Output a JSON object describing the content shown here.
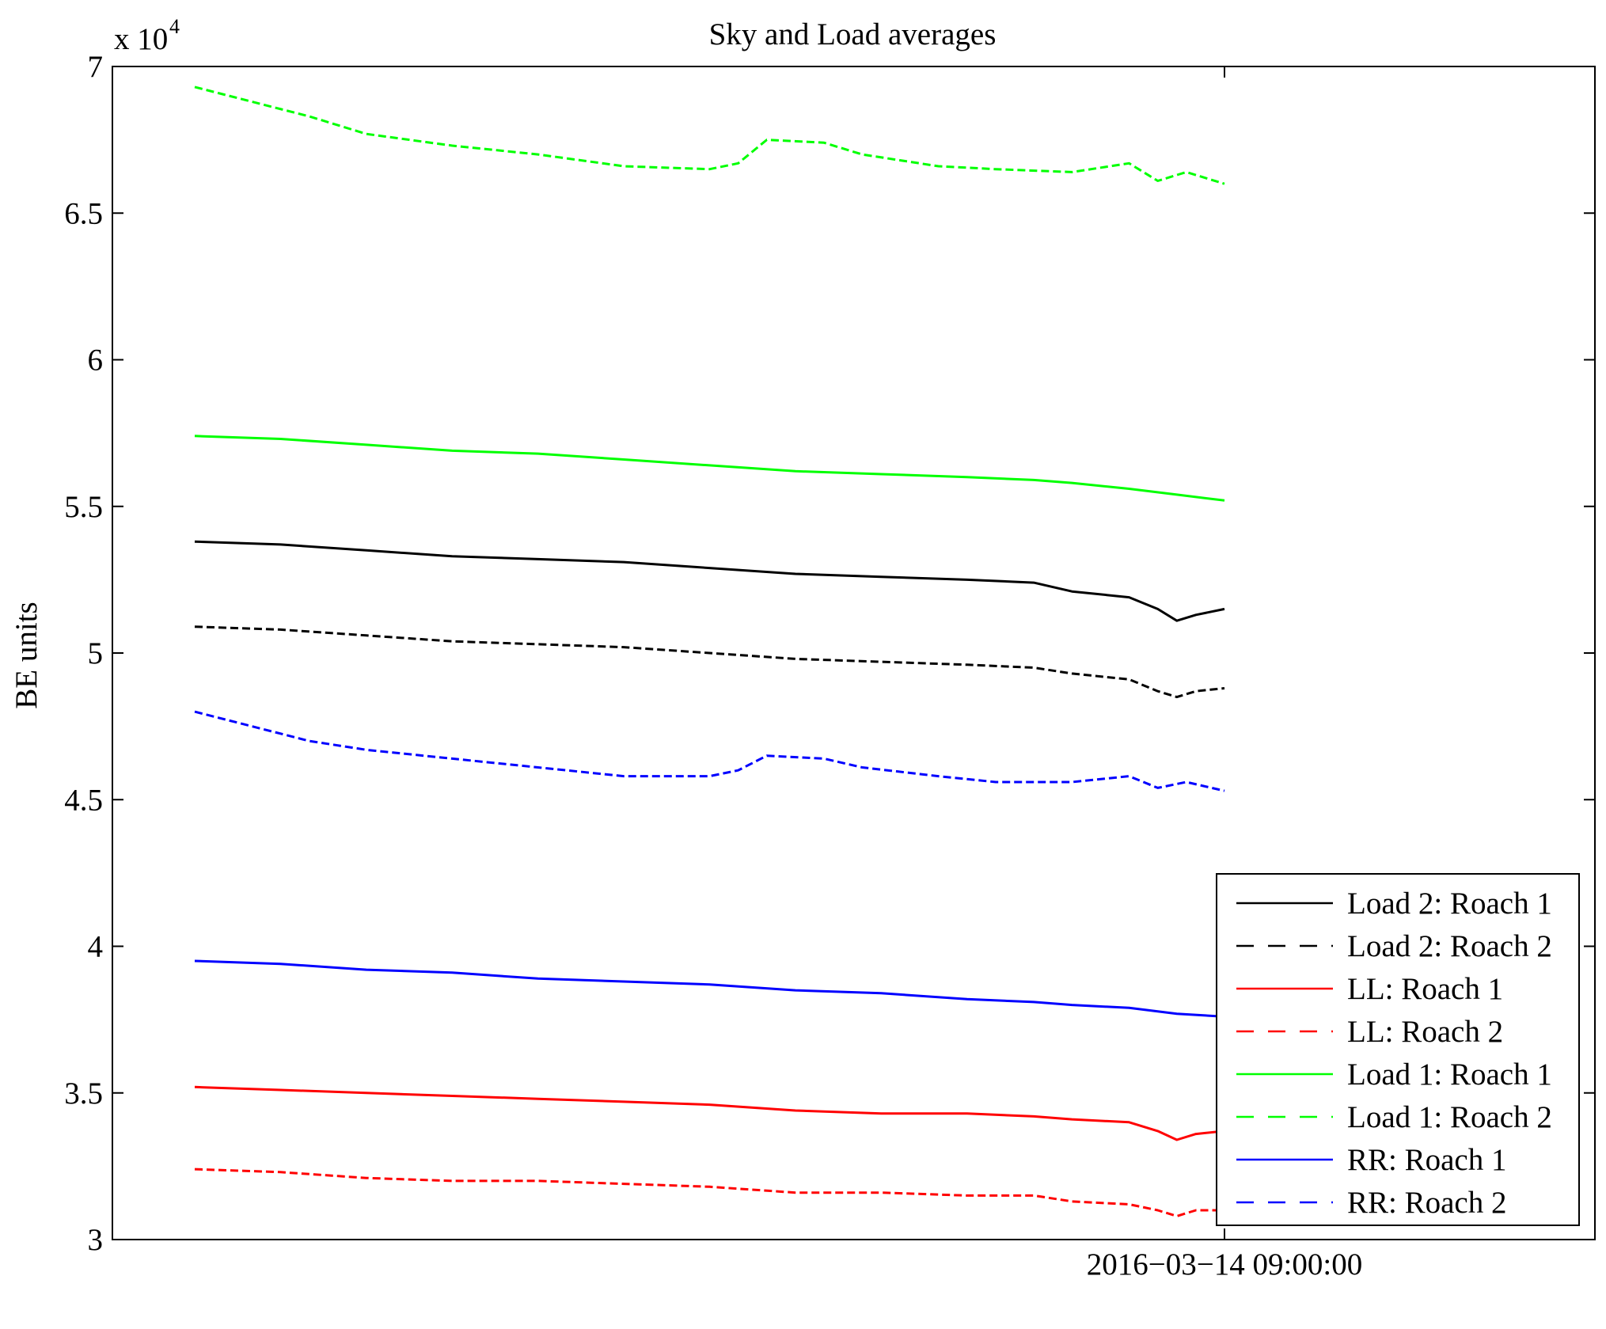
{
  "chart_data": {
    "type": "line",
    "title": "Sky and Load averages",
    "xlabel": "",
    "ylabel": "BE units",
    "y_exponent_label": "x 10",
    "y_exponent_power": "4",
    "y_scale_factor": 10000,
    "ylim": [
      30000,
      70000
    ],
    "y_ticks": [
      {
        "value": 30000,
        "label": "3"
      },
      {
        "value": 35000,
        "label": "3.5"
      },
      {
        "value": 40000,
        "label": "4"
      },
      {
        "value": 45000,
        "label": "4.5"
      },
      {
        "value": 50000,
        "label": "5"
      },
      {
        "value": 55000,
        "label": "5.5"
      },
      {
        "value": 60000,
        "label": "6"
      },
      {
        "value": 65000,
        "label": "6.5"
      },
      {
        "value": 70000,
        "label": "7"
      }
    ],
    "x_ticks": [
      {
        "value": "2016-03-14 09:00:00",
        "label": "2016−03−14 09:00:00"
      }
    ],
    "grid": false,
    "legend_position": "bottom-right",
    "series": [
      {
        "name": "Load 2: Roach 1",
        "color": "#000000",
        "dash": "solid",
        "points": [
          [
            "2016-03-14 00:00:00",
            53800
          ],
          [
            "2016-03-14 00:45:00",
            53700
          ],
          [
            "2016-03-14 01:30:00",
            53500
          ],
          [
            "2016-03-14 02:15:00",
            53300
          ],
          [
            "2016-03-14 03:00:00",
            53200
          ],
          [
            "2016-03-14 03:45:00",
            53100
          ],
          [
            "2016-03-14 04:30:00",
            52900
          ],
          [
            "2016-03-14 05:15:00",
            52700
          ],
          [
            "2016-03-14 06:00:00",
            52600
          ],
          [
            "2016-03-14 06:45:00",
            52500
          ],
          [
            "2016-03-14 07:20:00",
            52400
          ],
          [
            "2016-03-14 07:40:00",
            52100
          ],
          [
            "2016-03-14 08:10:00",
            51900
          ],
          [
            "2016-03-14 08:25:00",
            51500
          ],
          [
            "2016-03-14 08:35:00",
            51100
          ],
          [
            "2016-03-14 08:45:00",
            51300
          ],
          [
            "2016-03-14 09:00:00",
            51500
          ]
        ]
      },
      {
        "name": "Load 2: Roach 2",
        "color": "#000000",
        "dash": "dashed",
        "points": [
          [
            "2016-03-14 00:00:00",
            50900
          ],
          [
            "2016-03-14 00:45:00",
            50800
          ],
          [
            "2016-03-14 01:30:00",
            50600
          ],
          [
            "2016-03-14 02:15:00",
            50400
          ],
          [
            "2016-03-14 03:00:00",
            50300
          ],
          [
            "2016-03-14 03:45:00",
            50200
          ],
          [
            "2016-03-14 04:30:00",
            50000
          ],
          [
            "2016-03-14 05:15:00",
            49800
          ],
          [
            "2016-03-14 06:00:00",
            49700
          ],
          [
            "2016-03-14 06:45:00",
            49600
          ],
          [
            "2016-03-14 07:20:00",
            49500
          ],
          [
            "2016-03-14 07:40:00",
            49300
          ],
          [
            "2016-03-14 08:10:00",
            49100
          ],
          [
            "2016-03-14 08:25:00",
            48700
          ],
          [
            "2016-03-14 08:35:00",
            48500
          ],
          [
            "2016-03-14 08:45:00",
            48700
          ],
          [
            "2016-03-14 09:00:00",
            48800
          ]
        ]
      },
      {
        "name": "LL: Roach 1",
        "color": "#ff0000",
        "dash": "solid",
        "points": [
          [
            "2016-03-14 00:00:00",
            35200
          ],
          [
            "2016-03-14 00:45:00",
            35100
          ],
          [
            "2016-03-14 01:30:00",
            35000
          ],
          [
            "2016-03-14 02:15:00",
            34900
          ],
          [
            "2016-03-14 03:00:00",
            34800
          ],
          [
            "2016-03-14 03:45:00",
            34700
          ],
          [
            "2016-03-14 04:30:00",
            34600
          ],
          [
            "2016-03-14 05:15:00",
            34400
          ],
          [
            "2016-03-14 06:00:00",
            34300
          ],
          [
            "2016-03-14 06:45:00",
            34300
          ],
          [
            "2016-03-14 07:20:00",
            34200
          ],
          [
            "2016-03-14 07:40:00",
            34100
          ],
          [
            "2016-03-14 08:10:00",
            34000
          ],
          [
            "2016-03-14 08:25:00",
            33700
          ],
          [
            "2016-03-14 08:35:00",
            33400
          ],
          [
            "2016-03-14 08:45:00",
            33600
          ],
          [
            "2016-03-14 09:00:00",
            33700
          ]
        ]
      },
      {
        "name": "LL: Roach 2",
        "color": "#ff0000",
        "dash": "dashed",
        "points": [
          [
            "2016-03-14 00:00:00",
            32400
          ],
          [
            "2016-03-14 00:45:00",
            32300
          ],
          [
            "2016-03-14 01:30:00",
            32100
          ],
          [
            "2016-03-14 02:15:00",
            32000
          ],
          [
            "2016-03-14 03:00:00",
            32000
          ],
          [
            "2016-03-14 03:45:00",
            31900
          ],
          [
            "2016-03-14 04:30:00",
            31800
          ],
          [
            "2016-03-14 05:15:00",
            31600
          ],
          [
            "2016-03-14 06:00:00",
            31600
          ],
          [
            "2016-03-14 06:45:00",
            31500
          ],
          [
            "2016-03-14 07:20:00",
            31500
          ],
          [
            "2016-03-14 07:40:00",
            31300
          ],
          [
            "2016-03-14 08:10:00",
            31200
          ],
          [
            "2016-03-14 08:25:00",
            31000
          ],
          [
            "2016-03-14 08:35:00",
            30800
          ],
          [
            "2016-03-14 08:45:00",
            31000
          ],
          [
            "2016-03-14 09:00:00",
            31000
          ]
        ]
      },
      {
        "name": "Load 1: Roach 1",
        "color": "#00ff00",
        "dash": "solid",
        "points": [
          [
            "2016-03-14 00:00:00",
            57400
          ],
          [
            "2016-03-14 00:45:00",
            57300
          ],
          [
            "2016-03-14 01:30:00",
            57100
          ],
          [
            "2016-03-14 02:15:00",
            56900
          ],
          [
            "2016-03-14 03:00:00",
            56800
          ],
          [
            "2016-03-14 03:45:00",
            56600
          ],
          [
            "2016-03-14 04:30:00",
            56400
          ],
          [
            "2016-03-14 05:15:00",
            56200
          ],
          [
            "2016-03-14 06:00:00",
            56100
          ],
          [
            "2016-03-14 06:45:00",
            56000
          ],
          [
            "2016-03-14 07:20:00",
            55900
          ],
          [
            "2016-03-14 07:40:00",
            55800
          ],
          [
            "2016-03-14 08:10:00",
            55600
          ],
          [
            "2016-03-14 08:35:00",
            55400
          ],
          [
            "2016-03-14 09:00:00",
            55200
          ]
        ]
      },
      {
        "name": "Load 1: Roach 2",
        "color": "#00ff00",
        "dash": "dashed",
        "points": [
          [
            "2016-03-14 00:00:00",
            69300
          ],
          [
            "2016-03-14 00:30:00",
            68800
          ],
          [
            "2016-03-14 01:00:00",
            68300
          ],
          [
            "2016-03-14 01:30:00",
            67700
          ],
          [
            "2016-03-14 02:15:00",
            67300
          ],
          [
            "2016-03-14 03:00:00",
            67000
          ],
          [
            "2016-03-14 03:45:00",
            66600
          ],
          [
            "2016-03-14 04:30:00",
            66500
          ],
          [
            "2016-03-14 04:45:00",
            66700
          ],
          [
            "2016-03-14 05:00:00",
            67500
          ],
          [
            "2016-03-14 05:30:00",
            67400
          ],
          [
            "2016-03-14 05:50:00",
            67000
          ],
          [
            "2016-03-14 06:30:00",
            66600
          ],
          [
            "2016-03-14 07:00:00",
            66500
          ],
          [
            "2016-03-14 07:40:00",
            66400
          ],
          [
            "2016-03-14 08:10:00",
            66700
          ],
          [
            "2016-03-14 08:25:00",
            66100
          ],
          [
            "2016-03-14 08:40:00",
            66400
          ],
          [
            "2016-03-14 09:00:00",
            66000
          ]
        ]
      },
      {
        "name": "RR: Roach 1",
        "color": "#0000ff",
        "dash": "solid",
        "points": [
          [
            "2016-03-14 00:00:00",
            39500
          ],
          [
            "2016-03-14 00:45:00",
            39400
          ],
          [
            "2016-03-14 01:30:00",
            39200
          ],
          [
            "2016-03-14 02:15:00",
            39100
          ],
          [
            "2016-03-14 03:00:00",
            38900
          ],
          [
            "2016-03-14 03:45:00",
            38800
          ],
          [
            "2016-03-14 04:30:00",
            38700
          ],
          [
            "2016-03-14 05:15:00",
            38500
          ],
          [
            "2016-03-14 06:00:00",
            38400
          ],
          [
            "2016-03-14 06:45:00",
            38200
          ],
          [
            "2016-03-14 07:20:00",
            38100
          ],
          [
            "2016-03-14 07:40:00",
            38000
          ],
          [
            "2016-03-14 08:10:00",
            37900
          ],
          [
            "2016-03-14 08:35:00",
            37700
          ],
          [
            "2016-03-14 09:00:00",
            37600
          ]
        ]
      },
      {
        "name": "RR: Roach 2",
        "color": "#0000ff",
        "dash": "dashed",
        "points": [
          [
            "2016-03-14 00:00:00",
            48000
          ],
          [
            "2016-03-14 00:30:00",
            47500
          ],
          [
            "2016-03-14 01:00:00",
            47000
          ],
          [
            "2016-03-14 01:30:00",
            46700
          ],
          [
            "2016-03-14 02:15:00",
            46400
          ],
          [
            "2016-03-14 03:00:00",
            46100
          ],
          [
            "2016-03-14 03:45:00",
            45800
          ],
          [
            "2016-03-14 04:30:00",
            45800
          ],
          [
            "2016-03-14 04:45:00",
            46000
          ],
          [
            "2016-03-14 05:00:00",
            46500
          ],
          [
            "2016-03-14 05:30:00",
            46400
          ],
          [
            "2016-03-14 05:50:00",
            46100
          ],
          [
            "2016-03-14 06:30:00",
            45800
          ],
          [
            "2016-03-14 07:00:00",
            45600
          ],
          [
            "2016-03-14 07:40:00",
            45600
          ],
          [
            "2016-03-14 08:10:00",
            45800
          ],
          [
            "2016-03-14 08:25:00",
            45400
          ],
          [
            "2016-03-14 08:40:00",
            45600
          ],
          [
            "2016-03-14 09:00:00",
            45300
          ]
        ]
      }
    ]
  }
}
